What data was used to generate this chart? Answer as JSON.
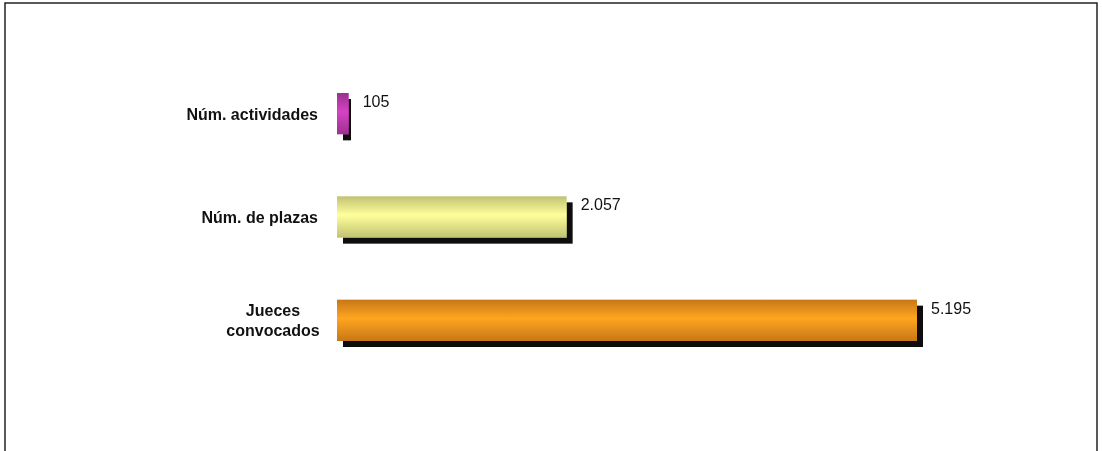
{
  "chart_data": {
    "type": "bar",
    "orientation": "horizontal",
    "value_labels": [
      "105",
      "2.057",
      "5.195"
    ],
    "categories": [
      "Núm. actividades",
      "Núm. de plazas",
      "Jueces\nconvocados"
    ],
    "values": [
      105,
      2057,
      5195
    ],
    "colors": [
      "#c03cb0",
      "#eef08c",
      "#f7941d"
    ]
  }
}
